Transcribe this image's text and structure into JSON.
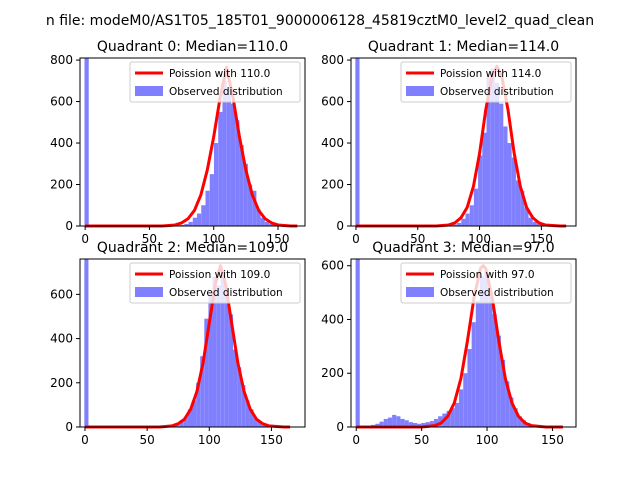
{
  "suptitle": "n file: modeM0/AS1T05_185T01_9000006128_45819cztM0_level2_quad_clean",
  "colors": {
    "hist": "#8080ff",
    "poisson": "#ff0000",
    "axis": "#000000",
    "legend_border": "#cccccc"
  },
  "chart_data": [
    {
      "type": "bar",
      "title": "Quadrant 0: Median=110.0",
      "xlabel": "",
      "ylabel": "",
      "xlim": [
        -4,
        171
      ],
      "ylim": [
        0,
        810
      ],
      "xticks": [
        0,
        50,
        100,
        150
      ],
      "yticks": [
        0,
        200,
        400,
        600,
        800
      ],
      "legend_placement": "top-right",
      "series": [
        {
          "name": "Observed distribution",
          "kind": "histogram",
          "bin_width": 3.3,
          "bins": [
            [
              -0.5,
              1000
            ],
            [
              70.5,
              2
            ],
            [
              73.8,
              5
            ],
            [
              77.1,
              10
            ],
            [
              80.4,
              20
            ],
            [
              83.7,
              40
            ],
            [
              87,
              60
            ],
            [
              90.3,
              100
            ],
            [
              93.6,
              170
            ],
            [
              96.9,
              250
            ],
            [
              100.2,
              400
            ],
            [
              103.5,
              550
            ],
            [
              106.8,
              700
            ],
            [
              110.1,
              660
            ],
            [
              113.4,
              590
            ],
            [
              116.7,
              510
            ],
            [
              120,
              390
            ],
            [
              123.3,
              300
            ],
            [
              126.6,
              200
            ],
            [
              129.9,
              170
            ],
            [
              133.2,
              80
            ],
            [
              136.5,
              40
            ],
            [
              139.8,
              20
            ],
            [
              143.1,
              10
            ],
            [
              146.4,
              5
            ],
            [
              149.7,
              3
            ]
          ]
        },
        {
          "name": "Poission with 110.0",
          "kind": "line",
          "x": [
            0,
            60,
            70,
            75,
            80,
            85,
            90,
            95,
            100,
            105,
            110,
            115,
            120,
            125,
            130,
            135,
            140,
            145,
            150,
            160,
            165
          ],
          "y": [
            0,
            0,
            5,
            15,
            35,
            75,
            150,
            270,
            430,
            620,
            765,
            620,
            430,
            270,
            150,
            75,
            35,
            15,
            5,
            0,
            0
          ]
        }
      ]
    },
    {
      "type": "bar",
      "title": "Quadrant 1: Median=114.0",
      "xlabel": "",
      "ylabel": "",
      "xlim": [
        -4,
        178
      ],
      "ylim": [
        0,
        810
      ],
      "xticks": [
        0,
        50,
        100,
        150
      ],
      "yticks": [
        0,
        200,
        400,
        600,
        800
      ],
      "legend_placement": "top-right",
      "series": [
        {
          "name": "Observed distribution",
          "kind": "histogram",
          "bin_width": 3.4,
          "bins": [
            [
              -0.5,
              1000
            ],
            [
              75,
              3
            ],
            [
              78.4,
              8
            ],
            [
              81.8,
              15
            ],
            [
              85.2,
              35
            ],
            [
              88.6,
              60
            ],
            [
              92,
              100
            ],
            [
              95.4,
              180
            ],
            [
              98.8,
              340
            ],
            [
              102.2,
              450
            ],
            [
              105.6,
              720
            ],
            [
              109,
              760
            ],
            [
              112.4,
              690
            ],
            [
              115.8,
              590
            ],
            [
              119.2,
              480
            ],
            [
              122.6,
              400
            ],
            [
              126,
              330
            ],
            [
              129.4,
              220
            ],
            [
              132.8,
              170
            ],
            [
              136.2,
              90
            ],
            [
              139.6,
              40
            ],
            [
              143,
              20
            ],
            [
              146.4,
              10
            ],
            [
              149.8,
              5
            ]
          ]
        },
        {
          "name": "Poission with 114.0",
          "kind": "line",
          "x": [
            0,
            65,
            75,
            80,
            85,
            90,
            95,
            100,
            105,
            110,
            114,
            118,
            123,
            128,
            133,
            138,
            143,
            148,
            153,
            165,
            170
          ],
          "y": [
            0,
            0,
            5,
            15,
            40,
            90,
            190,
            350,
            560,
            720,
            770,
            720,
            560,
            350,
            190,
            90,
            40,
            15,
            5,
            0,
            0
          ]
        }
      ]
    },
    {
      "type": "bar",
      "title": "Quadrant 2: Median=109.0",
      "xlabel": "",
      "ylabel": "",
      "xlim": [
        -4,
        177
      ],
      "ylim": [
        0,
        760
      ],
      "xticks": [
        0,
        50,
        100,
        150
      ],
      "yticks": [
        0,
        200,
        400,
        600
      ],
      "legend_placement": "top-right",
      "series": [
        {
          "name": "Observed distribution",
          "kind": "histogram",
          "bin_width": 3.3,
          "bins": [
            [
              -0.5,
              1000
            ],
            [
              63,
              2
            ],
            [
              66.3,
              4
            ],
            [
              69.6,
              8
            ],
            [
              72.9,
              15
            ],
            [
              76.2,
              30
            ],
            [
              79.5,
              45
            ],
            [
              82.8,
              80
            ],
            [
              86.1,
              120
            ],
            [
              89.4,
              200
            ],
            [
              92.7,
              320
            ],
            [
              96,
              490
            ],
            [
              99.3,
              600
            ],
            [
              102.6,
              680
            ],
            [
              105.9,
              640
            ],
            [
              109.2,
              700
            ],
            [
              112.5,
              600
            ],
            [
              115.8,
              510
            ],
            [
              119.1,
              350
            ],
            [
              122.4,
              270
            ],
            [
              125.7,
              190
            ],
            [
              129,
              120
            ],
            [
              132.3,
              80
            ],
            [
              135.6,
              40
            ],
            [
              138.9,
              25
            ],
            [
              142.2,
              10
            ],
            [
              145.5,
              5
            ]
          ]
        },
        {
          "name": "Poission with 109.0",
          "kind": "line",
          "x": [
            0,
            60,
            70,
            75,
            80,
            85,
            90,
            95,
            100,
            105,
            109,
            113,
            118,
            123,
            128,
            133,
            138,
            143,
            148,
            160,
            165
          ],
          "y": [
            0,
            0,
            5,
            15,
            35,
            80,
            160,
            290,
            470,
            650,
            730,
            650,
            470,
            290,
            160,
            80,
            35,
            15,
            5,
            0,
            0
          ]
        }
      ]
    },
    {
      "type": "bar",
      "title": "Quadrant 3: Median=97.0",
      "xlabel": "",
      "ylabel": "",
      "xlim": [
        -4,
        168
      ],
      "ylim": [
        0,
        625
      ],
      "xticks": [
        0,
        50,
        100,
        150
      ],
      "yticks": [
        0,
        200,
        400,
        600
      ],
      "legend_placement": "top-right",
      "series": [
        {
          "name": "Observed distribution",
          "kind": "histogram",
          "bin_width": 3.2,
          "bins": [
            [
              -0.5,
              1000
            ],
            [
              5,
              2
            ],
            [
              8.2,
              5
            ],
            [
              11.4,
              8
            ],
            [
              14.6,
              12
            ],
            [
              17.8,
              20
            ],
            [
              21,
              30
            ],
            [
              24.2,
              35
            ],
            [
              27.4,
              45
            ],
            [
              30.6,
              40
            ],
            [
              33.8,
              30
            ],
            [
              37,
              25
            ],
            [
              40.2,
              18
            ],
            [
              43.4,
              15
            ],
            [
              46.6,
              12
            ],
            [
              49.8,
              15
            ],
            [
              53,
              18
            ],
            [
              56.2,
              22
            ],
            [
              59.4,
              30
            ],
            [
              62.6,
              40
            ],
            [
              65.8,
              50
            ],
            [
              69,
              60
            ],
            [
              72.2,
              70
            ],
            [
              75.4,
              90
            ],
            [
              78.6,
              140
            ],
            [
              81.8,
              200
            ],
            [
              85,
              290
            ],
            [
              88.2,
              390
            ],
            [
              91.4,
              470
            ],
            [
              94.6,
              560
            ],
            [
              97.8,
              580
            ],
            [
              101,
              500
            ],
            [
              104.2,
              420
            ],
            [
              107.4,
              340
            ],
            [
              110.6,
              250
            ],
            [
              113.8,
              170
            ],
            [
              117,
              110
            ],
            [
              120.2,
              70
            ],
            [
              123.4,
              40
            ],
            [
              126.6,
              25
            ],
            [
              129.8,
              15
            ],
            [
              133,
              8
            ],
            [
              136.2,
              4
            ]
          ]
        },
        {
          "name": "Poission with 97.0",
          "kind": "line",
          "x": [
            0,
            50,
            60,
            65,
            70,
            75,
            80,
            85,
            90,
            95,
            97,
            99,
            104,
            109,
            114,
            119,
            124,
            129,
            134,
            145,
            158
          ],
          "y": [
            0,
            0,
            5,
            15,
            40,
            90,
            180,
            320,
            480,
            590,
            600,
            590,
            480,
            320,
            180,
            90,
            40,
            15,
            5,
            0,
            0
          ]
        }
      ]
    }
  ]
}
